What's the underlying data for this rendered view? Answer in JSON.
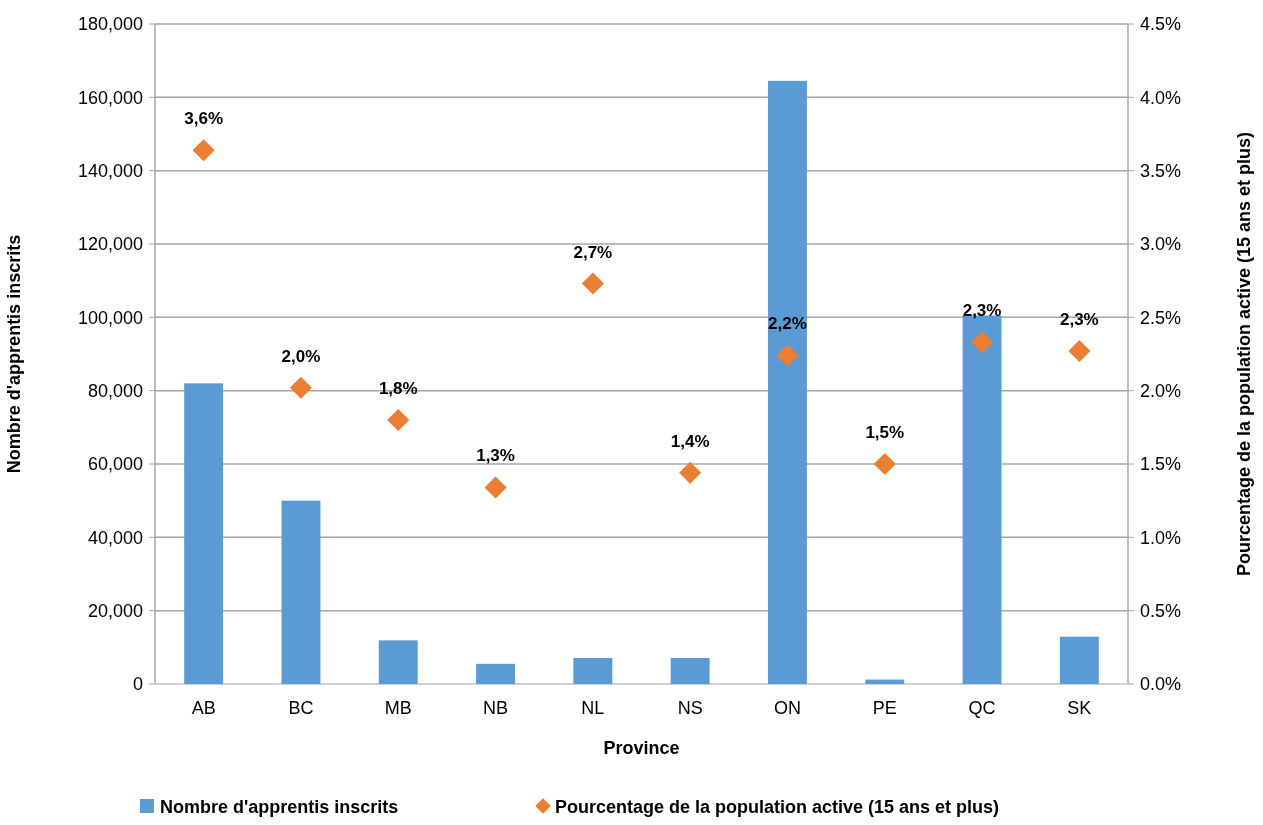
{
  "chart_data": {
    "type": "bar",
    "xlabel": "Province",
    "ylabel": "Nombre d'apprentis inscrits",
    "y2label": "Pourcentage de la population active (15 ans et plus)",
    "categories": [
      "AB",
      "BC",
      "MB",
      "NB",
      "NL",
      "NS",
      "ON",
      "PE",
      "QC",
      "SK"
    ],
    "series": [
      {
        "name": "Nombre d'apprentis inscrits",
        "color": "#5b9bd5",
        "values": [
          82000,
          50000,
          11900,
          5500,
          7100,
          7100,
          164500,
          1200,
          100500,
          12900
        ]
      },
      {
        "name": "Pourcentage de la population active (15 ans et plus)",
        "type": "scatter",
        "axis": "y2",
        "marker": "diamond",
        "color": "#ed7d31",
        "values": [
          3.64,
          2.02,
          1.8,
          1.34,
          2.73,
          1.44,
          2.24,
          1.5,
          2.33,
          2.27
        ],
        "value_labels": [
          "3,6%",
          "2,0%",
          "1,8%",
          "1,3%",
          "2,7%",
          "1,4%",
          "2,2%",
          "1,5%",
          "2,3%",
          "2,3%"
        ]
      }
    ],
    "ylim": [
      0,
      180000
    ],
    "yticks": [
      {
        "value": 0,
        "label": "0"
      },
      {
        "value": 20000,
        "label": "20,000"
      },
      {
        "value": 40000,
        "label": "40,000"
      },
      {
        "value": 60000,
        "label": "60,000"
      },
      {
        "value": 80000,
        "label": "80,000"
      },
      {
        "value": 100000,
        "label": "100,000"
      },
      {
        "value": 120000,
        "label": "120,000"
      },
      {
        "value": 140000,
        "label": "140,000"
      },
      {
        "value": 160000,
        "label": "160,000"
      },
      {
        "value": 180000,
        "label": "180,000"
      }
    ],
    "y2lim": [
      0,
      4.5
    ],
    "y2ticks": [
      {
        "value": 0,
        "label": "0.0%"
      },
      {
        "value": 0.5,
        "label": "0.5%"
      },
      {
        "value": 1,
        "label": "1.0%"
      },
      {
        "value": 1.5,
        "label": "1.5%"
      },
      {
        "value": 2,
        "label": "2.0%"
      },
      {
        "value": 2.5,
        "label": "2.5%"
      },
      {
        "value": 3,
        "label": "3.0%"
      },
      {
        "value": 3.5,
        "label": "3.5%"
      },
      {
        "value": 4,
        "label": "4.0%"
      },
      {
        "value": 4.5,
        "label": "4.5%"
      }
    ],
    "grid": "y",
    "legend": "bottom"
  }
}
